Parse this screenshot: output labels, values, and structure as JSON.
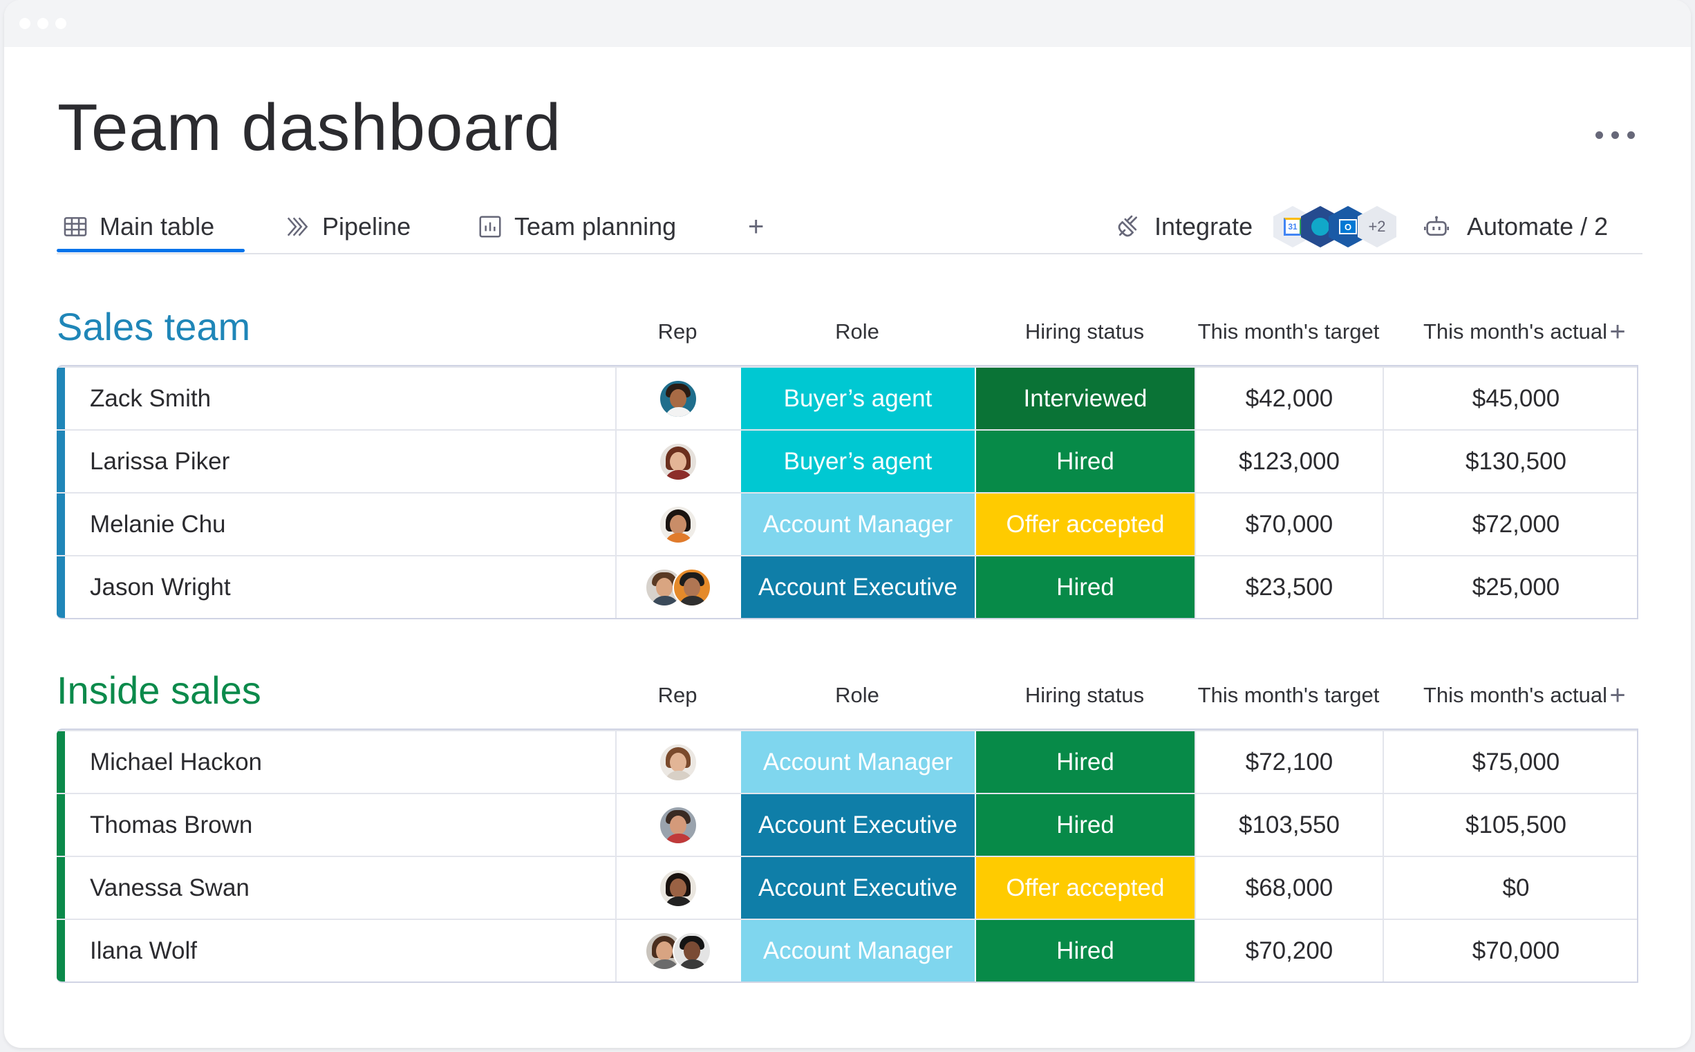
{
  "page": {
    "title": "Team dashboard"
  },
  "tabs": [
    {
      "label": "Main table",
      "icon": "table-icon"
    },
    {
      "label": "Pipeline",
      "icon": "pipeline-icon"
    },
    {
      "label": "Team planning",
      "icon": "chart-icon"
    }
  ],
  "toolbar": {
    "add_tab": "+",
    "integrate_label": "Integrate",
    "integrations_more": "+2",
    "automate_label": "Automate / 2",
    "more_menu_icon": "more-dots-icon"
  },
  "colors": {
    "accent_blue": "#0073ea",
    "sales_team": "#1f86b8",
    "inside_sales": "#0b8a4b",
    "role_buyers_agent": "#00c8d2",
    "role_account_manager": "#7fd6ee",
    "role_account_executive": "#0f7ea8",
    "status_interviewed": "#0a7336",
    "status_hired": "#078a48",
    "status_offer_accepted": "#ffcb00"
  },
  "groups": [
    {
      "title": "Sales team",
      "columns": {
        "rep": "Rep",
        "role": "Role",
        "status": "Hiring status",
        "target": "This month's target",
        "actual": "This month's actual",
        "add": "+"
      },
      "rows": [
        {
          "name": "Zack Smith",
          "role": "Buyer’s agent",
          "status": "Interviewed",
          "target": "$42,000",
          "actual": "$45,000"
        },
        {
          "name": "Larissa Piker",
          "role": "Buyer’s agent",
          "status": "Hired",
          "target": "$123,000",
          "actual": "$130,500"
        },
        {
          "name": "Melanie Chu",
          "role": "Account Manager",
          "status": "Offer accepted",
          "target": "$70,000",
          "actual": "$72,000"
        },
        {
          "name": "Jason Wright",
          "role": "Account Executive",
          "status": "Hired",
          "target": "$23,500",
          "actual": "$25,000"
        }
      ]
    },
    {
      "title": "Inside sales",
      "columns": {
        "rep": "Rep",
        "role": "Role",
        "status": "Hiring status",
        "target": "This month's target",
        "actual": "This month's actual",
        "add": "+"
      },
      "rows": [
        {
          "name": "Michael Hackon",
          "role": "Account Manager",
          "status": "Hired",
          "target": "$72,100",
          "actual": "$75,000"
        },
        {
          "name": "Thomas Brown",
          "role": "Account Executive",
          "status": "Hired",
          "target": "$103,550",
          "actual": "$105,500"
        },
        {
          "name": "Vanessa Swan",
          "role": "Account Executive",
          "status": "Offer accepted",
          "target": "$68,000",
          "actual": "$0"
        },
        {
          "name": "Ilana Wolf",
          "role": "Account Manager",
          "status": "Hired",
          "target": "$70,200",
          "actual": "$70,000"
        }
      ]
    }
  ]
}
